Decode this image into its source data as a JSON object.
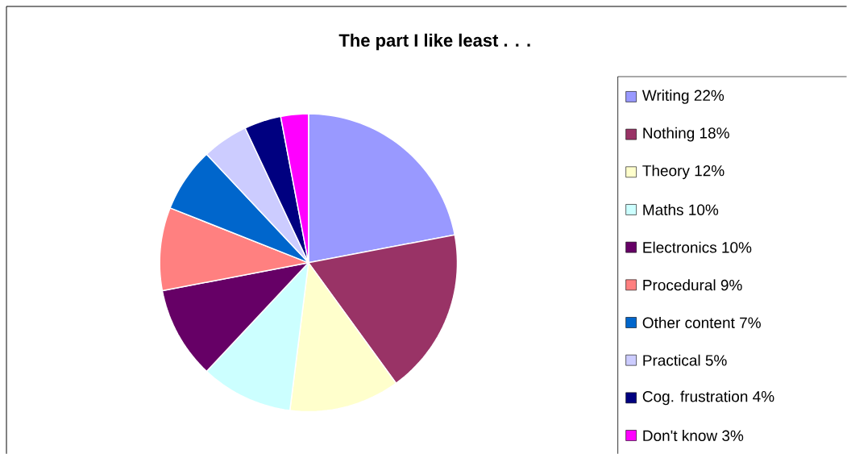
{
  "chart_data": {
    "type": "pie",
    "title": "The part I like least . . .",
    "categories": [
      "Writing 22%",
      "Nothing 18%",
      "Theory 12%",
      "Maths 10%",
      "Electronics 10%",
      "Procedural 9%",
      "Other content 7%",
      "Practical 5%",
      "Cog. frustration 4%",
      "Don't know 3%"
    ],
    "values": [
      22,
      18,
      12,
      10,
      10,
      9,
      7,
      5,
      4,
      3
    ],
    "colors": [
      "#9999ff",
      "#993366",
      "#ffffcc",
      "#ccffff",
      "#660066",
      "#ff8080",
      "#0066cc",
      "#ccccff",
      "#000080",
      "#ff00ff"
    ],
    "legend": "right"
  }
}
